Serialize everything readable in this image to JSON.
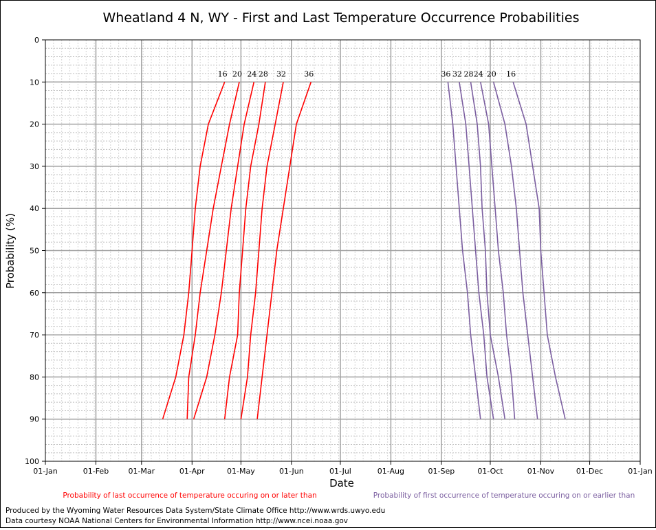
{
  "chart_data": {
    "type": "line",
    "title": "Wheatland 4 N, WY - First and Last Temperature Occurrence Probabilities",
    "xlabel": "Date",
    "ylabel": "Probability (%)",
    "x_ticks": [
      "01-Jan",
      "01-Feb",
      "01-Mar",
      "01-Apr",
      "01-May",
      "01-Jun",
      "01-Jul",
      "01-Aug",
      "01-Sep",
      "01-Oct",
      "01-Nov",
      "01-Dec",
      "01-Jan"
    ],
    "y_ticks": [
      "0",
      "10",
      "20",
      "30",
      "40",
      "50",
      "60",
      "70",
      "80",
      "90",
      "100"
    ],
    "ylim": [
      0,
      100
    ],
    "y_axis_inverted": true,
    "grid": true,
    "probabilities": [
      10,
      20,
      30,
      40,
      50,
      60,
      70,
      80,
      90
    ],
    "last_occurrence": {
      "legend": "Probability of last occurrence of temperature occuring on or later than",
      "color": "#ff0000",
      "series": [
        {
          "name": "16",
          "dates": [
            "04-21",
            "04-11",
            "04-06",
            "04-03",
            "04-01",
            "03-30",
            "03-27",
            "03-22",
            "03-14"
          ]
        },
        {
          "name": "20",
          "dates": [
            "04-30",
            "04-24",
            "04-19",
            "04-14",
            "04-10",
            "04-06",
            "04-03",
            "03-30",
            "03-29"
          ]
        },
        {
          "name": "24",
          "dates": [
            "05-09",
            "05-03",
            "04-29",
            "04-25",
            "04-22",
            "04-19",
            "04-15",
            "04-10",
            "04-02"
          ]
        },
        {
          "name": "28",
          "dates": [
            "05-16",
            "05-12",
            "05-07",
            "05-04",
            "05-02",
            "04-30",
            "04-29",
            "04-24",
            "04-21"
          ]
        },
        {
          "name": "32",
          "dates": [
            "05-27",
            "05-22",
            "05-17",
            "05-14",
            "05-12",
            "05-10",
            "05-07",
            "05-05",
            "05-01"
          ]
        },
        {
          "name": "36",
          "dates": [
            "06-13",
            "06-04",
            "05-31",
            "05-27",
            "05-23",
            "05-20",
            "05-17",
            "05-14",
            "05-11"
          ]
        }
      ]
    },
    "first_occurrence": {
      "legend": "Probability of first occurrence of temperature occuring on or earlier than",
      "color": "#7b5ea0",
      "series": [
        {
          "name": "36",
          "dates": [
            "09-05",
            "09-08",
            "09-10",
            "09-12",
            "09-14",
            "09-17",
            "09-19",
            "09-22",
            "09-25"
          ]
        },
        {
          "name": "32",
          "dates": [
            "09-12",
            "09-16",
            "09-18",
            "09-20",
            "09-22",
            "09-24",
            "09-27",
            "09-29",
            "10-03"
          ]
        },
        {
          "name": "28",
          "dates": [
            "09-19",
            "09-23",
            "09-25",
            "09-26",
            "09-28",
            "09-29",
            "10-01",
            "10-06",
            "10-10"
          ]
        },
        {
          "name": "24",
          "dates": [
            "09-25",
            "09-30",
            "10-02",
            "10-04",
            "10-06",
            "10-09",
            "10-11",
            "10-14",
            "10-16"
          ]
        },
        {
          "name": "20",
          "dates": [
            "10-03",
            "10-10",
            "10-14",
            "10-17",
            "10-19",
            "10-21",
            "10-24",
            "10-27",
            "10-30"
          ]
        },
        {
          "name": "16",
          "dates": [
            "10-15",
            "10-23",
            "10-27",
            "10-31",
            "11-01",
            "11-03",
            "11-05",
            "11-10",
            "11-16"
          ]
        }
      ]
    }
  },
  "credits": {
    "line1": "Produced by the Wyoming Water Resources Data System/State Climate Office http://www.wrds.uwyo.edu",
    "line2": "Data courtesy NOAA National Centers for Environmental Information http://www.ncei.noaa.gov"
  }
}
